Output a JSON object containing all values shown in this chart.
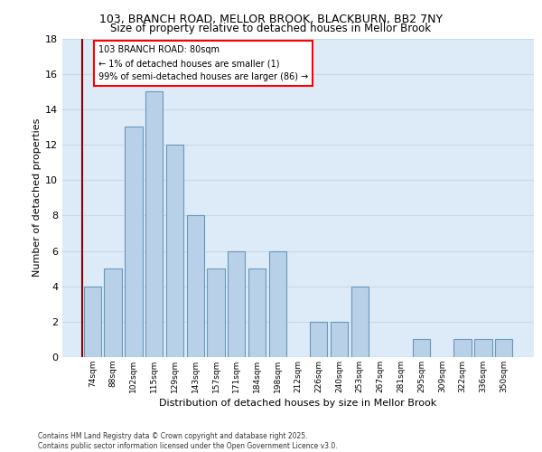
{
  "title_line1": "103, BRANCH ROAD, MELLOR BROOK, BLACKBURN, BB2 7NY",
  "title_line2": "Size of property relative to detached houses in Mellor Brook",
  "xlabel": "Distribution of detached houses by size in Mellor Brook",
  "ylabel": "Number of detached properties",
  "categories": [
    "74sqm",
    "88sqm",
    "102sqm",
    "115sqm",
    "129sqm",
    "143sqm",
    "157sqm",
    "171sqm",
    "184sqm",
    "198sqm",
    "212sqm",
    "226sqm",
    "240sqm",
    "253sqm",
    "267sqm",
    "281sqm",
    "295sqm",
    "309sqm",
    "322sqm",
    "336sqm",
    "350sqm"
  ],
  "values": [
    4,
    5,
    13,
    15,
    12,
    8,
    5,
    6,
    5,
    6,
    0,
    2,
    2,
    4,
    0,
    0,
    1,
    0,
    1,
    1,
    1
  ],
  "bar_color": "#b8d0e8",
  "bar_edge_color": "#6699bb",
  "annotation_text": "103 BRANCH ROAD: 80sqm\n← 1% of detached houses are smaller (1)\n99% of semi-detached houses are larger (86) →",
  "ylim": [
    0,
    18
  ],
  "yticks": [
    0,
    2,
    4,
    6,
    8,
    10,
    12,
    14,
    16,
    18
  ],
  "grid_color": "#c8d8e8",
  "bg_color": "#ddeaf7",
  "vline_color": "#8b0000",
  "footer_text": "Contains HM Land Registry data © Crown copyright and database right 2025.\nContains public sector information licensed under the Open Government Licence v3.0."
}
